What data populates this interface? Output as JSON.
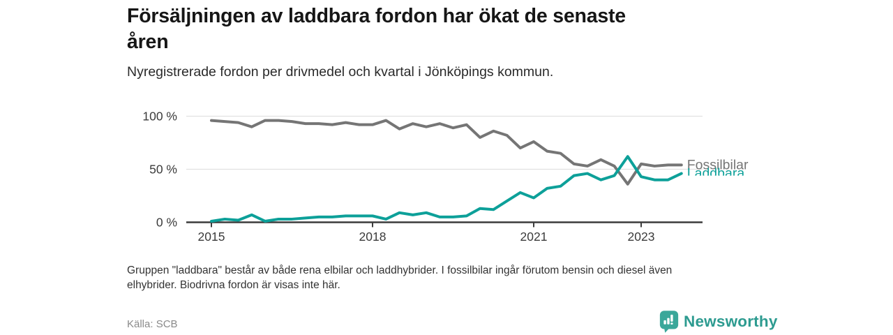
{
  "header": {
    "title_lines": [
      "Försäljningen av laddbara fordon har ökat de senaste",
      "åren"
    ],
    "subtitle": "Nyregistrerade fordon per drivmedel och kvartal i Jönköpings kommun."
  },
  "chart_data": {
    "type": "line",
    "title": "Försäljningen av laddbara fordon har ökat de senaste åren",
    "subtitle": "Nyregistrerade fordon per drivmedel och kvartal i Jönköpings kommun.",
    "unit": "%",
    "start_year": 2015,
    "x_step": "quarter",
    "categories": [
      "2015 Q1",
      "2015 Q2",
      "2015 Q3",
      "2015 Q4",
      "2016 Q1",
      "2016 Q2",
      "2016 Q3",
      "2016 Q4",
      "2017 Q1",
      "2017 Q2",
      "2017 Q3",
      "2017 Q4",
      "2018 Q1",
      "2018 Q2",
      "2018 Q3",
      "2018 Q4",
      "2019 Q1",
      "2019 Q2",
      "2019 Q3",
      "2019 Q4",
      "2020 Q1",
      "2020 Q2",
      "2020 Q3",
      "2020 Q4",
      "2021 Q1",
      "2021 Q2",
      "2021 Q3",
      "2021 Q4",
      "2022 Q1",
      "2022 Q2",
      "2022 Q3",
      "2022 Q4",
      "2023 Q1",
      "2023 Q2",
      "2023 Q3",
      "2023 Q4"
    ],
    "y_axis": {
      "lim": [
        0,
        100
      ],
      "ticks": [
        100,
        50,
        0
      ],
      "tick_labels": [
        "100 %",
        "50 %",
        "0 %"
      ],
      "grid": true
    },
    "x_axis": {
      "tick_years": [
        2015,
        2018,
        2021,
        2023
      ],
      "tick_labels": [
        "2015",
        "2018",
        "2021",
        "2023"
      ]
    },
    "axis_color": "#3c3c3c",
    "grid_color": "#e1e1e1",
    "legend_position": "line-end-labels-right",
    "series": [
      {
        "name": "Fossilbilar",
        "color": "#757575",
        "values": [
          96,
          95,
          94,
          90,
          96,
          96,
          95,
          93,
          93,
          92,
          94,
          92,
          92,
          96,
          88,
          93,
          90,
          93,
          89,
          92,
          80,
          86,
          82,
          70,
          76,
          67,
          65,
          55,
          53,
          59,
          53,
          36,
          55,
          53,
          54,
          54
        ]
      },
      {
        "name": "Laddbara",
        "color": "#0da099",
        "values": [
          1,
          3,
          2,
          7,
          1,
          3,
          3,
          4,
          5,
          5,
          6,
          6,
          6,
          3,
          9,
          7,
          9,
          5,
          5,
          6,
          13,
          12,
          20,
          28,
          23,
          32,
          34,
          44,
          46,
          40,
          44,
          62,
          43,
          40,
          40,
          46
        ]
      }
    ]
  },
  "footer": {
    "note_lines": [
      "Gruppen \"laddbara\" består av både rena elbilar och laddhybrider. I fossilbilar ingår förutom bensin och diesel även",
      "elhybrider. Biodrivna fordon är visas inte här."
    ],
    "source": "Källa: SCB",
    "logo_text": "Newsworthy",
    "logo_color": "#3aa79a"
  }
}
